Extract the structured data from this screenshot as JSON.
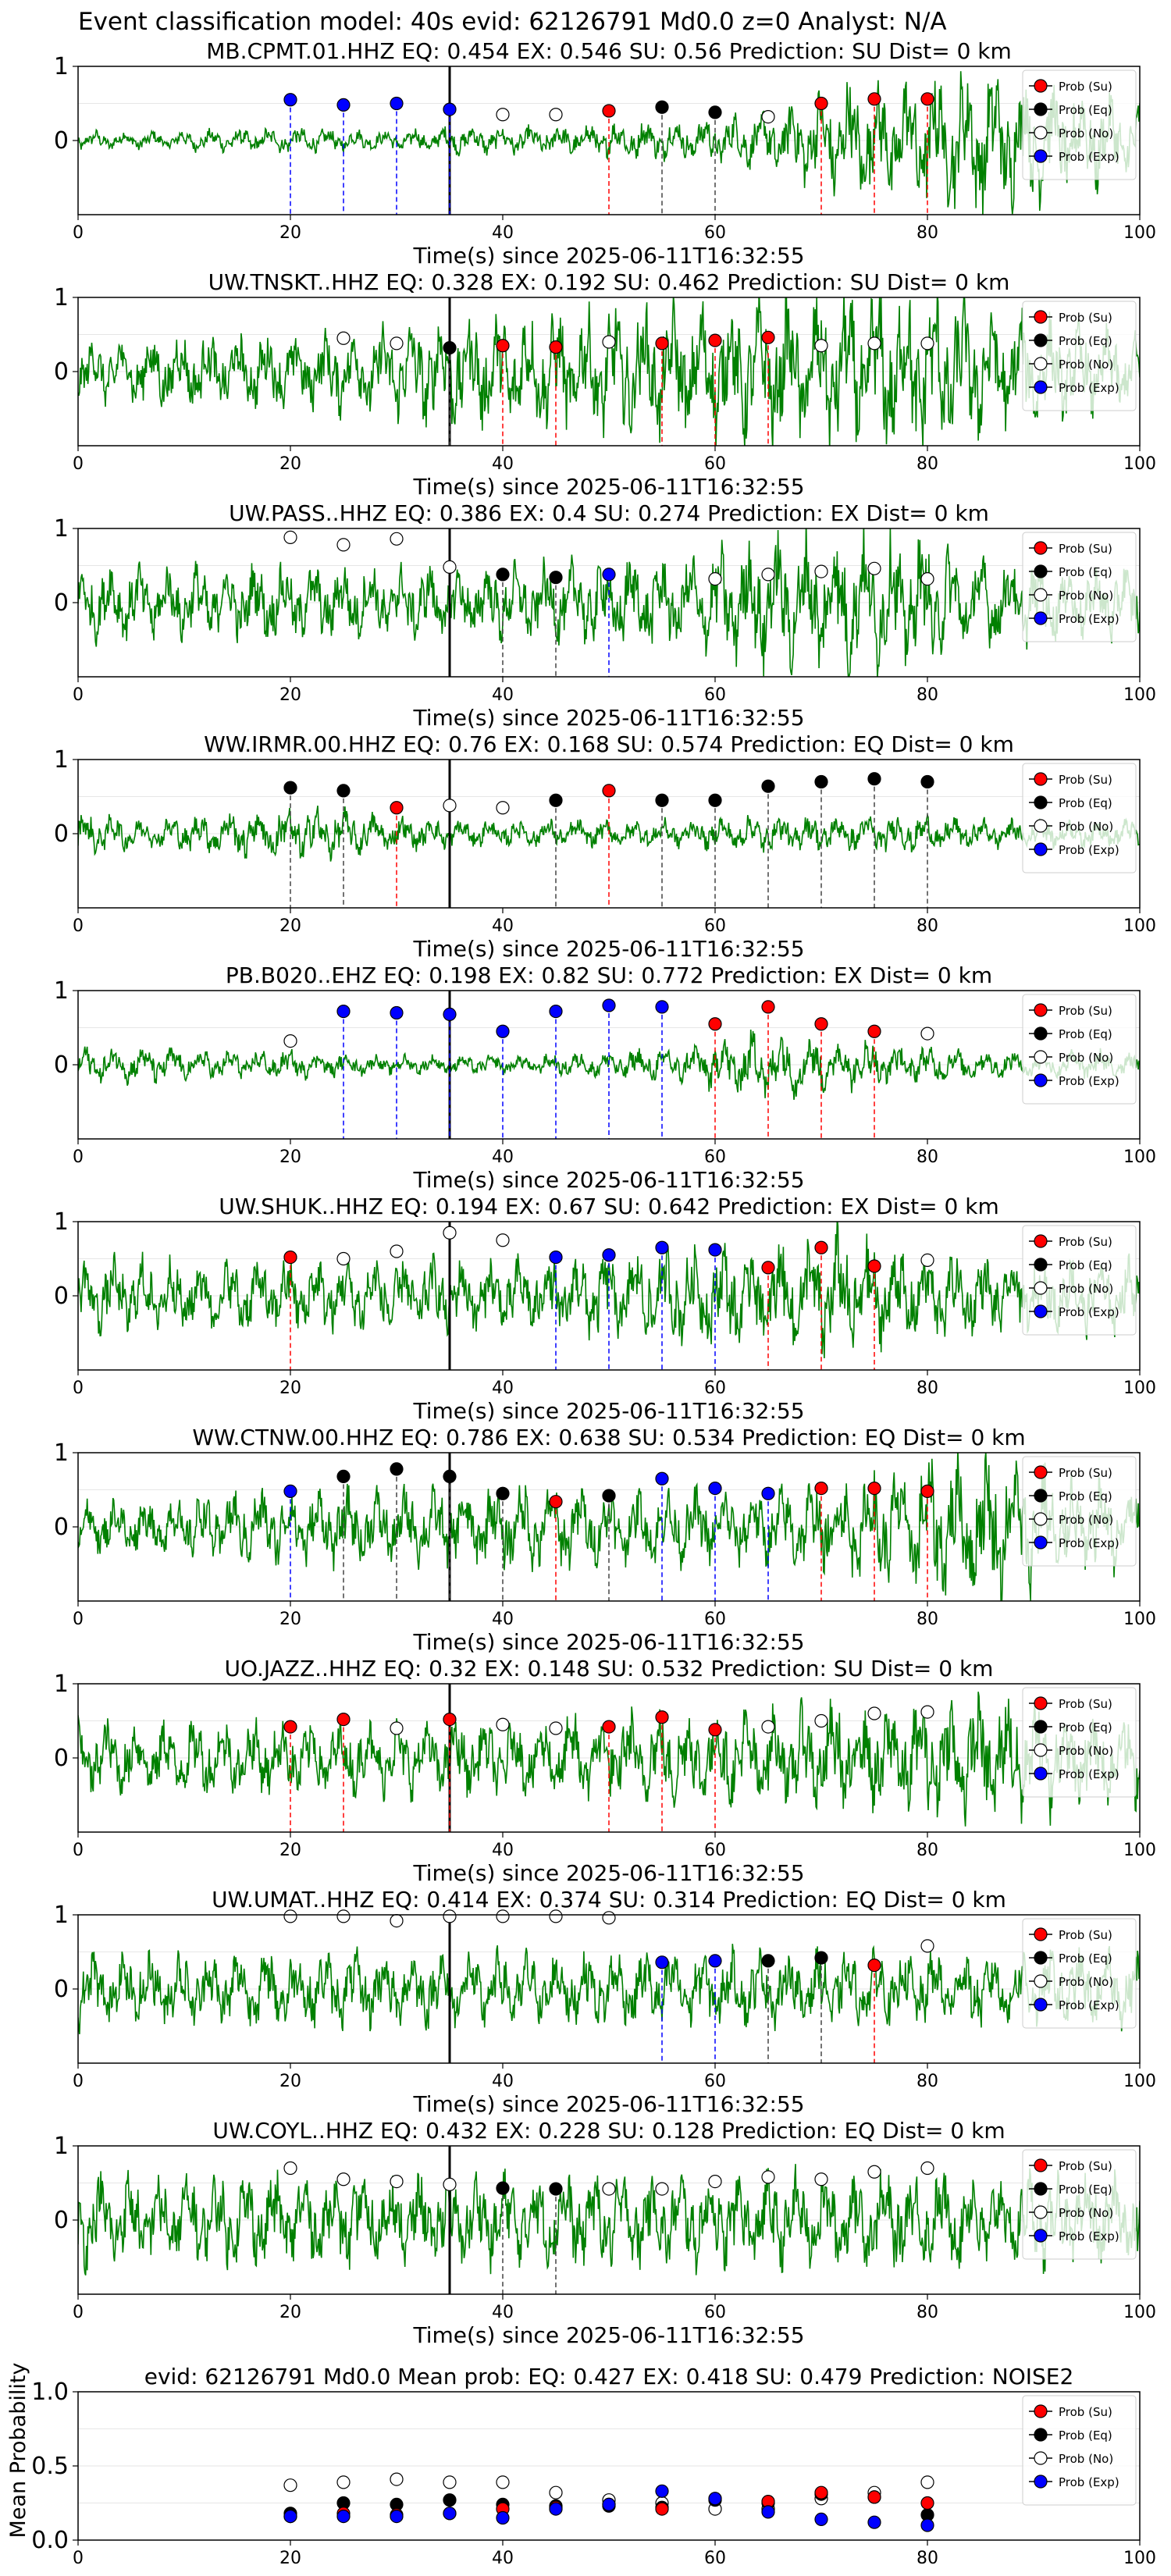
{
  "figure": {
    "suptitle": "Event classification model: 40s evid: 62126791 Md0.0 z=0 Analyst: N/A"
  },
  "legend_labels": [
    "Prob (Su)",
    "Prob (Eq)",
    "Prob (No)",
    "Prob (Exp)"
  ],
  "colors": {
    "su": "#ff0000",
    "eq": "#000000",
    "no": "#ffffff",
    "exp": "#0000ff",
    "trace": "#008000"
  },
  "chart_data": [
    {
      "type": "line",
      "title": "MB.CPMT.01.HHZ   EQ: 0.454  EX: 0.546  SU: 0.56   Prediction: SU    Dist= 0 km",
      "xlabel": "Time(s) since 2025-06-11T16:32:55",
      "xlim": [
        0,
        100
      ],
      "ylim": [
        -1,
        1
      ],
      "xticks": [
        "0",
        "20",
        "40",
        "60",
        "80",
        "100"
      ],
      "yticks": [
        "0",
        "1"
      ],
      "origin_time": 35,
      "amplitude": [
        0.1,
        0.1,
        0.12,
        0.14,
        0.1,
        0.15,
        0.15,
        0.2,
        0.22,
        0.3,
        0.6,
        0.7,
        0.8,
        0.6,
        0.4
      ],
      "points": [
        {
          "x": 20,
          "y": 0.55,
          "c": "exp"
        },
        {
          "x": 25,
          "y": 0.48,
          "c": "exp"
        },
        {
          "x": 30,
          "y": 0.5,
          "c": "exp"
        },
        {
          "x": 35,
          "y": 0.42,
          "c": "exp"
        },
        {
          "x": 40,
          "y": 0.35,
          "c": "no"
        },
        {
          "x": 45,
          "y": 0.35,
          "c": "no"
        },
        {
          "x": 50,
          "y": 0.4,
          "c": "su"
        },
        {
          "x": 55,
          "y": 0.45,
          "c": "eq"
        },
        {
          "x": 60,
          "y": 0.38,
          "c": "eq"
        },
        {
          "x": 65,
          "y": 0.32,
          "c": "no"
        },
        {
          "x": 70,
          "y": 0.5,
          "c": "su"
        },
        {
          "x": 75,
          "y": 0.56,
          "c": "su"
        },
        {
          "x": 80,
          "y": 0.56,
          "c": "su"
        }
      ]
    },
    {
      "type": "line",
      "title": "UW.TNSKT..HHZ   EQ: 0.328  EX: 0.192  SU: 0.462   Prediction: SU    Dist= 0 km",
      "xlabel": "Time(s) since 2025-06-11T16:32:55",
      "xlim": [
        0,
        100
      ],
      "ylim": [
        -1,
        1
      ],
      "xticks": [
        "0",
        "20",
        "40",
        "60",
        "80",
        "100"
      ],
      "yticks": [
        "0",
        "1"
      ],
      "origin_time": 35,
      "amplitude": [
        0.3,
        0.4,
        0.4,
        0.4,
        0.5,
        0.6,
        0.6,
        0.7,
        0.7,
        0.75,
        0.8,
        0.9,
        0.7,
        0.5,
        0.4
      ],
      "points": [
        {
          "x": 25,
          "y": 0.45,
          "c": "no"
        },
        {
          "x": 30,
          "y": 0.38,
          "c": "no"
        },
        {
          "x": 35,
          "y": 0.32,
          "c": "eq"
        },
        {
          "x": 40,
          "y": 0.35,
          "c": "su"
        },
        {
          "x": 45,
          "y": 0.33,
          "c": "su"
        },
        {
          "x": 50,
          "y": 0.4,
          "c": "no"
        },
        {
          "x": 55,
          "y": 0.38,
          "c": "su"
        },
        {
          "x": 60,
          "y": 0.42,
          "c": "su"
        },
        {
          "x": 65,
          "y": 0.46,
          "c": "su"
        },
        {
          "x": 70,
          "y": 0.35,
          "c": "no"
        },
        {
          "x": 75,
          "y": 0.38,
          "c": "no"
        },
        {
          "x": 80,
          "y": 0.38,
          "c": "no"
        }
      ]
    },
    {
      "type": "line",
      "title": "UW.PASS..HHZ   EQ: 0.386  EX: 0.4  SU: 0.274   Prediction: EX    Dist= 0 km",
      "xlabel": "Time(s) since 2025-06-11T16:32:55",
      "xlim": [
        0,
        100
      ],
      "ylim": [
        -1,
        1
      ],
      "xticks": [
        "0",
        "20",
        "40",
        "60",
        "80",
        "100"
      ],
      "yticks": [
        "0",
        "1"
      ],
      "origin_time": 35,
      "amplitude": [
        0.4,
        0.4,
        0.4,
        0.4,
        0.4,
        0.4,
        0.4,
        0.5,
        0.5,
        0.7,
        0.8,
        0.7,
        0.5,
        0.4,
        0.4
      ],
      "points": [
        {
          "x": 20,
          "y": 0.88,
          "c": "no"
        },
        {
          "x": 25,
          "y": 0.78,
          "c": "no"
        },
        {
          "x": 30,
          "y": 0.86,
          "c": "no"
        },
        {
          "x": 35,
          "y": 0.48,
          "c": "no"
        },
        {
          "x": 40,
          "y": 0.38,
          "c": "eq"
        },
        {
          "x": 45,
          "y": 0.34,
          "c": "eq"
        },
        {
          "x": 50,
          "y": 0.38,
          "c": "exp"
        },
        {
          "x": 60,
          "y": 0.32,
          "c": "no"
        },
        {
          "x": 65,
          "y": 0.38,
          "c": "no"
        },
        {
          "x": 70,
          "y": 0.42,
          "c": "no"
        },
        {
          "x": 75,
          "y": 0.46,
          "c": "no"
        },
        {
          "x": 80,
          "y": 0.32,
          "c": "no"
        }
      ]
    },
    {
      "type": "line",
      "title": "WW.IRMR.00.HHZ   EQ: 0.76  EX: 0.168  SU: 0.574   Prediction: EQ    Dist= 0 km",
      "xlabel": "Time(s) since 2025-06-11T16:32:55",
      "xlim": [
        0,
        100
      ],
      "ylim": [
        -1,
        1
      ],
      "xticks": [
        "0",
        "20",
        "40",
        "60",
        "80",
        "100"
      ],
      "yticks": [
        "0",
        "1"
      ],
      "origin_time": 35,
      "amplitude": [
        0.25,
        0.15,
        0.25,
        0.3,
        0.2,
        0.15,
        0.15,
        0.15,
        0.15,
        0.2,
        0.2,
        0.2,
        0.15,
        0.15,
        0.15
      ],
      "points": [
        {
          "x": 20,
          "y": 0.62,
          "c": "eq"
        },
        {
          "x": 25,
          "y": 0.58,
          "c": "eq"
        },
        {
          "x": 30,
          "y": 0.35,
          "c": "su"
        },
        {
          "x": 35,
          "y": 0.38,
          "c": "no"
        },
        {
          "x": 40,
          "y": 0.35,
          "c": "no"
        },
        {
          "x": 45,
          "y": 0.45,
          "c": "eq"
        },
        {
          "x": 50,
          "y": 0.58,
          "c": "su"
        },
        {
          "x": 55,
          "y": 0.45,
          "c": "eq"
        },
        {
          "x": 60,
          "y": 0.45,
          "c": "eq"
        },
        {
          "x": 65,
          "y": 0.64,
          "c": "eq"
        },
        {
          "x": 70,
          "y": 0.7,
          "c": "eq"
        },
        {
          "x": 75,
          "y": 0.74,
          "c": "eq"
        },
        {
          "x": 80,
          "y": 0.7,
          "c": "eq"
        }
      ]
    },
    {
      "type": "line",
      "title": "PB.B020..EHZ   EQ: 0.198  EX: 0.82  SU: 0.772   Prediction: EX    Dist= 0 km",
      "xlabel": "Time(s) since 2025-06-11T16:32:55",
      "xlim": [
        0,
        100
      ],
      "ylim": [
        -1,
        1
      ],
      "xticks": [
        "0",
        "20",
        "40",
        "60",
        "80",
        "100"
      ],
      "yticks": [
        "0",
        "1"
      ],
      "origin_time": 35,
      "amplitude": [
        0.2,
        0.2,
        0.15,
        0.15,
        0.1,
        0.1,
        0.1,
        0.15,
        0.2,
        0.4,
        0.3,
        0.2,
        0.15,
        0.15,
        0.15
      ],
      "points": [
        {
          "x": 20,
          "y": 0.32,
          "c": "no"
        },
        {
          "x": 25,
          "y": 0.72,
          "c": "exp"
        },
        {
          "x": 30,
          "y": 0.7,
          "c": "exp"
        },
        {
          "x": 35,
          "y": 0.68,
          "c": "exp"
        },
        {
          "x": 40,
          "y": 0.45,
          "c": "exp"
        },
        {
          "x": 45,
          "y": 0.72,
          "c": "exp"
        },
        {
          "x": 50,
          "y": 0.8,
          "c": "exp"
        },
        {
          "x": 55,
          "y": 0.78,
          "c": "exp"
        },
        {
          "x": 60,
          "y": 0.55,
          "c": "su"
        },
        {
          "x": 65,
          "y": 0.78,
          "c": "su"
        },
        {
          "x": 70,
          "y": 0.55,
          "c": "su"
        },
        {
          "x": 75,
          "y": 0.45,
          "c": "su"
        },
        {
          "x": 80,
          "y": 0.42,
          "c": "no"
        }
      ]
    },
    {
      "type": "line",
      "title": "UW.SHUK..HHZ   EQ: 0.194  EX: 0.67  SU: 0.642   Prediction: EX    Dist= 0 km",
      "xlabel": "Time(s) since 2025-06-11T16:32:55",
      "xlim": [
        0,
        100
      ],
      "ylim": [
        -1,
        1
      ],
      "xticks": [
        "0",
        "20",
        "40",
        "60",
        "80",
        "100"
      ],
      "yticks": [
        "0",
        "1"
      ],
      "origin_time": 35,
      "amplitude": [
        0.4,
        0.4,
        0.4,
        0.4,
        0.4,
        0.4,
        0.4,
        0.5,
        0.5,
        0.6,
        0.7,
        0.5,
        0.4,
        0.4,
        0.4
      ],
      "points": [
        {
          "x": 20,
          "y": 0.52,
          "c": "su"
        },
        {
          "x": 25,
          "y": 0.5,
          "c": "no"
        },
        {
          "x": 30,
          "y": 0.6,
          "c": "no"
        },
        {
          "x": 35,
          "y": 0.85,
          "c": "no"
        },
        {
          "x": 40,
          "y": 0.75,
          "c": "no"
        },
        {
          "x": 45,
          "y": 0.52,
          "c": "exp"
        },
        {
          "x": 50,
          "y": 0.55,
          "c": "exp"
        },
        {
          "x": 55,
          "y": 0.65,
          "c": "exp"
        },
        {
          "x": 60,
          "y": 0.62,
          "c": "exp"
        },
        {
          "x": 65,
          "y": 0.38,
          "c": "su"
        },
        {
          "x": 70,
          "y": 0.65,
          "c": "su"
        },
        {
          "x": 75,
          "y": 0.4,
          "c": "su"
        },
        {
          "x": 80,
          "y": 0.48,
          "c": "no"
        }
      ]
    },
    {
      "type": "line",
      "title": "WW.CTNW.00.HHZ   EQ: 0.786  EX: 0.638  SU: 0.534   Prediction: EQ    Dist= 0 km",
      "xlabel": "Time(s) since 2025-06-11T16:32:55",
      "xlim": [
        0,
        100
      ],
      "ylim": [
        -1,
        1
      ],
      "xticks": [
        "0",
        "20",
        "40",
        "60",
        "80",
        "100"
      ],
      "yticks": [
        "0",
        "1"
      ],
      "origin_time": 35,
      "amplitude": [
        0.3,
        0.3,
        0.4,
        0.4,
        0.4,
        0.4,
        0.5,
        0.4,
        0.4,
        0.4,
        0.5,
        0.7,
        0.8,
        0.6,
        0.4
      ],
      "points": [
        {
          "x": 20,
          "y": 0.48,
          "c": "exp"
        },
        {
          "x": 25,
          "y": 0.68,
          "c": "eq"
        },
        {
          "x": 30,
          "y": 0.78,
          "c": "eq"
        },
        {
          "x": 35,
          "y": 0.68,
          "c": "eq"
        },
        {
          "x": 40,
          "y": 0.45,
          "c": "eq"
        },
        {
          "x": 45,
          "y": 0.34,
          "c": "su"
        },
        {
          "x": 50,
          "y": 0.42,
          "c": "eq"
        },
        {
          "x": 55,
          "y": 0.65,
          "c": "exp"
        },
        {
          "x": 60,
          "y": 0.52,
          "c": "exp"
        },
        {
          "x": 65,
          "y": 0.45,
          "c": "exp"
        },
        {
          "x": 70,
          "y": 0.52,
          "c": "su"
        },
        {
          "x": 75,
          "y": 0.52,
          "c": "su"
        },
        {
          "x": 80,
          "y": 0.48,
          "c": "su"
        }
      ]
    },
    {
      "type": "line",
      "title": "UO.JAZZ..HHZ   EQ: 0.32  EX: 0.148  SU: 0.532   Prediction: SU    Dist= 0 km",
      "xlabel": "Time(s) since 2025-06-11T16:32:55",
      "xlim": [
        0,
        100
      ],
      "ylim": [
        -1,
        1
      ],
      "xticks": [
        "0",
        "20",
        "40",
        "60",
        "80",
        "100"
      ],
      "yticks": [
        "0",
        "1"
      ],
      "origin_time": 35,
      "amplitude": [
        0.4,
        0.4,
        0.4,
        0.4,
        0.4,
        0.4,
        0.4,
        0.5,
        0.5,
        0.5,
        0.6,
        0.6,
        0.7,
        0.6,
        0.5
      ],
      "points": [
        {
          "x": 20,
          "y": 0.42,
          "c": "su"
        },
        {
          "x": 25,
          "y": 0.52,
          "c": "su"
        },
        {
          "x": 30,
          "y": 0.4,
          "c": "no"
        },
        {
          "x": 35,
          "y": 0.52,
          "c": "su"
        },
        {
          "x": 40,
          "y": 0.45,
          "c": "no"
        },
        {
          "x": 45,
          "y": 0.4,
          "c": "no"
        },
        {
          "x": 50,
          "y": 0.42,
          "c": "su"
        },
        {
          "x": 55,
          "y": 0.55,
          "c": "su"
        },
        {
          "x": 60,
          "y": 0.38,
          "c": "su"
        },
        {
          "x": 65,
          "y": 0.42,
          "c": "no"
        },
        {
          "x": 70,
          "y": 0.5,
          "c": "no"
        },
        {
          "x": 75,
          "y": 0.6,
          "c": "no"
        },
        {
          "x": 80,
          "y": 0.62,
          "c": "no"
        }
      ]
    },
    {
      "type": "line",
      "title": "UW.UMAT..HHZ   EQ: 0.414  EX: 0.374  SU: 0.314   Prediction: EQ    Dist= 0 km",
      "xlabel": "Time(s) since 2025-06-11T16:32:55",
      "xlim": [
        0,
        100
      ],
      "ylim": [
        -1,
        1
      ],
      "xticks": [
        "0",
        "20",
        "40",
        "60",
        "80",
        "100"
      ],
      "yticks": [
        "0",
        "1"
      ],
      "origin_time": 35,
      "amplitude": [
        0.4,
        0.4,
        0.4,
        0.4,
        0.4,
        0.4,
        0.4,
        0.4,
        0.4,
        0.4,
        0.4,
        0.4,
        0.4,
        0.4,
        0.4
      ],
      "points": [
        {
          "x": 20,
          "y": 0.98,
          "c": "no"
        },
        {
          "x": 25,
          "y": 0.98,
          "c": "no"
        },
        {
          "x": 30,
          "y": 0.92,
          "c": "no"
        },
        {
          "x": 35,
          "y": 0.98,
          "c": "no"
        },
        {
          "x": 40,
          "y": 0.98,
          "c": "no"
        },
        {
          "x": 45,
          "y": 0.98,
          "c": "no"
        },
        {
          "x": 50,
          "y": 0.96,
          "c": "no"
        },
        {
          "x": 55,
          "y": 0.36,
          "c": "exp"
        },
        {
          "x": 60,
          "y": 0.38,
          "c": "exp"
        },
        {
          "x": 65,
          "y": 0.38,
          "c": "eq"
        },
        {
          "x": 70,
          "y": 0.42,
          "c": "eq"
        },
        {
          "x": 75,
          "y": 0.32,
          "c": "su"
        },
        {
          "x": 80,
          "y": 0.58,
          "c": "no"
        }
      ]
    },
    {
      "type": "line",
      "title": "UW.COYL..HHZ   EQ: 0.432  EX: 0.228  SU: 0.128   Prediction: EQ    Dist= 0 km",
      "xlabel": "Time(s) since 2025-06-11T16:32:55",
      "xlim": [
        0,
        100
      ],
      "ylim": [
        -1,
        1
      ],
      "xticks": [
        "0",
        "20",
        "40",
        "60",
        "80",
        "100"
      ],
      "yticks": [
        "0",
        "1"
      ],
      "origin_time": 35,
      "amplitude": [
        0.5,
        0.5,
        0.5,
        0.5,
        0.5,
        0.5,
        0.5,
        0.5,
        0.5,
        0.5,
        0.5,
        0.5,
        0.5,
        0.5,
        0.5
      ],
      "points": [
        {
          "x": 20,
          "y": 0.7,
          "c": "no"
        },
        {
          "x": 25,
          "y": 0.55,
          "c": "no"
        },
        {
          "x": 30,
          "y": 0.52,
          "c": "no"
        },
        {
          "x": 35,
          "y": 0.48,
          "c": "no"
        },
        {
          "x": 40,
          "y": 0.43,
          "c": "eq"
        },
        {
          "x": 45,
          "y": 0.42,
          "c": "eq"
        },
        {
          "x": 50,
          "y": 0.42,
          "c": "no"
        },
        {
          "x": 55,
          "y": 0.42,
          "c": "no"
        },
        {
          "x": 60,
          "y": 0.52,
          "c": "no"
        },
        {
          "x": 65,
          "y": 0.58,
          "c": "no"
        },
        {
          "x": 70,
          "y": 0.55,
          "c": "no"
        },
        {
          "x": 75,
          "y": 0.65,
          "c": "no"
        },
        {
          "x": 80,
          "y": 0.7,
          "c": "no"
        }
      ]
    },
    {
      "type": "scatter",
      "title": "evid: 62126791  Md0.0   Mean prob:   EQ: 0.427  EX: 0.418  SU: 0.479   Prediction: NOISE2",
      "ylabel": "Mean Probability",
      "xlim": [
        0,
        100
      ],
      "ylim": [
        0,
        1
      ],
      "xticks": [
        "0",
        "20",
        "40",
        "60",
        "80",
        "100"
      ],
      "yticks": [
        "0.0",
        "0.5",
        "1.0"
      ],
      "x": [
        20,
        25,
        30,
        35,
        40,
        45,
        50,
        55,
        60,
        65,
        70,
        75,
        80
      ],
      "series": [
        {
          "name": "Prob (No)",
          "c": "no",
          "values": [
            0.37,
            0.39,
            0.41,
            0.39,
            0.39,
            0.32,
            0.27,
            0.25,
            0.21,
            0.21,
            0.28,
            0.32,
            0.39
          ]
        },
        {
          "name": "Prob (Eq)",
          "c": "eq",
          "values": [
            0.18,
            0.25,
            0.24,
            0.27,
            0.24,
            0.23,
            0.23,
            0.22,
            0.27,
            0.25,
            0.31,
            0.29,
            0.17
          ]
        },
        {
          "name": "Prob (Su)",
          "c": "su",
          "values": [
            0.16,
            0.18,
            0.17,
            0.18,
            0.21,
            0.22,
            0.24,
            0.21,
            0.28,
            0.26,
            0.32,
            0.29,
            0.25
          ]
        },
        {
          "name": "Prob (Exp)",
          "c": "exp",
          "values": [
            0.16,
            0.16,
            0.16,
            0.18,
            0.15,
            0.21,
            0.24,
            0.33,
            0.28,
            0.19,
            0.14,
            0.12,
            0.1
          ]
        }
      ]
    }
  ]
}
